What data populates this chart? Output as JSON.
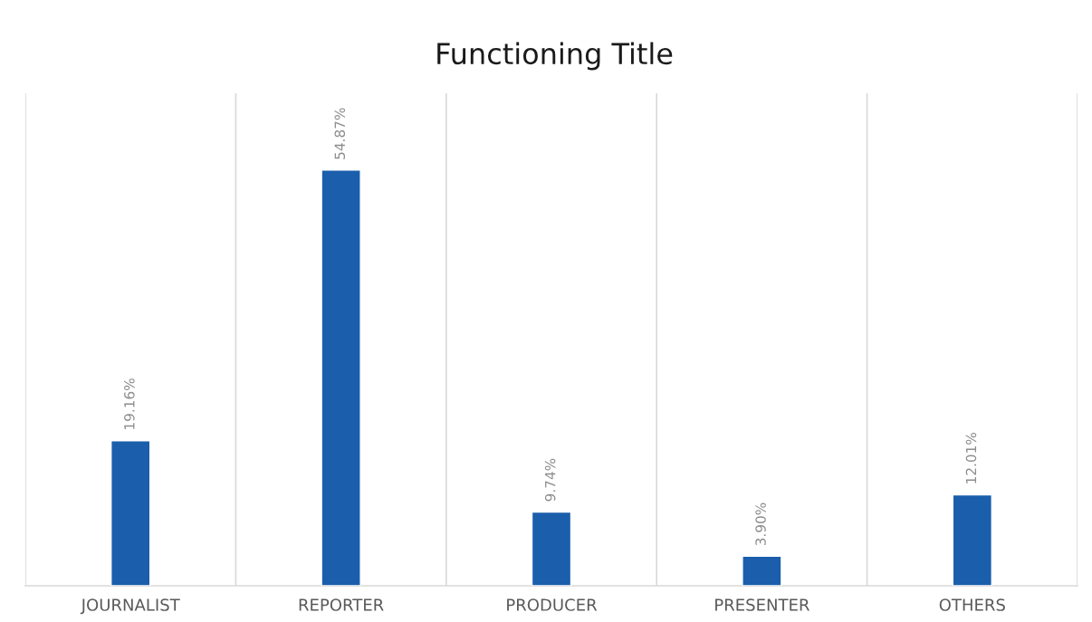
{
  "chart_data": {
    "type": "bar",
    "title": "Functioning Title",
    "categories": [
      "JOURNALIST",
      "REPORTER",
      "PRODUCER",
      "PRESENTER",
      "OTHERS"
    ],
    "values": [
      19.16,
      54.87,
      9.74,
      3.9,
      12.01
    ],
    "value_labels": [
      "19.16%",
      "54.87%",
      "9.74%",
      "3.90%",
      "12.01%"
    ],
    "color": "#1b5eab",
    "grid": "x",
    "legend": false
  }
}
